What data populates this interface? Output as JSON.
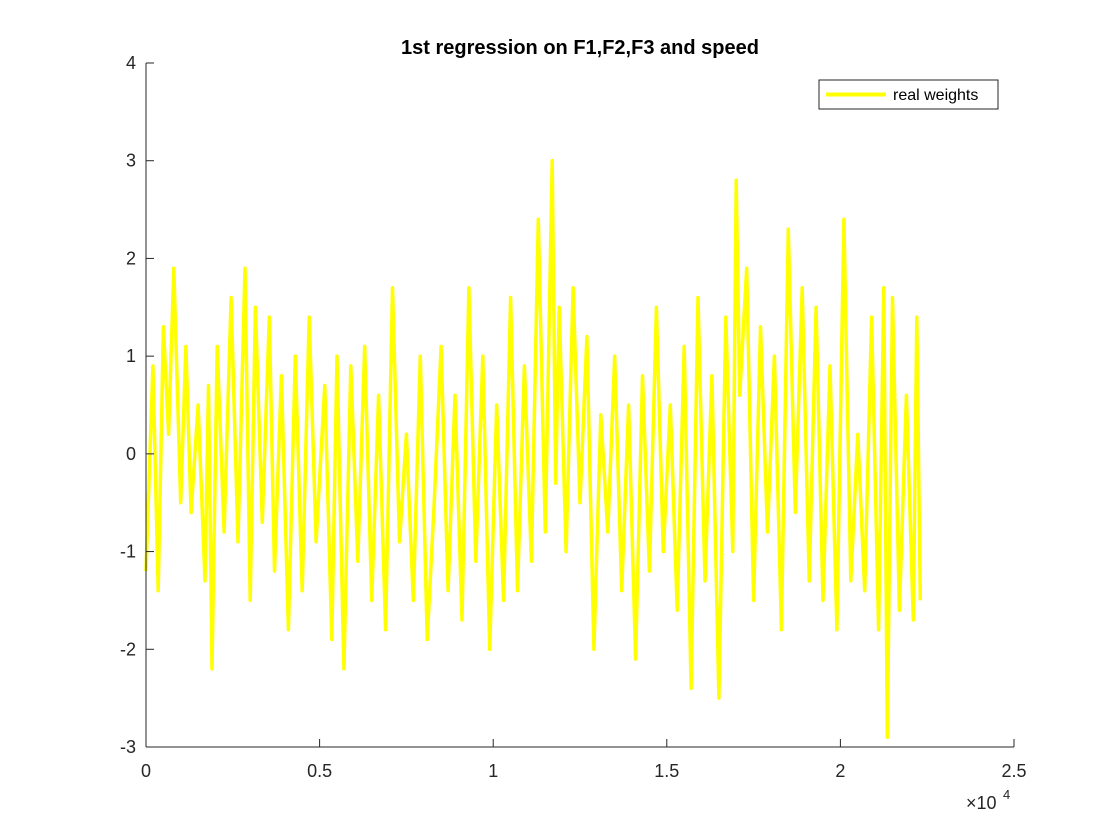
{
  "chart_data": {
    "type": "line",
    "title": "1st regression on F1,F2,F3 and speed",
    "xlabel": "",
    "ylabel": "",
    "xlim": [
      0,
      25000
    ],
    "ylim": [
      -3,
      4
    ],
    "x_ticks": [
      0,
      0.5,
      1,
      1.5,
      2,
      2.5
    ],
    "x_tick_labels": [
      "0",
      "0.5",
      "1",
      "1.5",
      "2",
      "2.5"
    ],
    "x_exponent_label": {
      "base": "×10",
      "exp": "4"
    },
    "y_ticks": [
      -3,
      -2,
      -1,
      0,
      1,
      2,
      3,
      4
    ],
    "y_tick_labels": [
      "-3",
      "-2",
      "-1",
      "0",
      "1",
      "2",
      "3",
      "4"
    ],
    "grid": false,
    "legend_position": "top-right",
    "series": [
      {
        "name": "real weights",
        "color": "#ffff00",
        "x": [
          0,
          200,
          350,
          500,
          650,
          800,
          1000,
          1150,
          1300,
          1500,
          1700,
          1800,
          1900,
          2050,
          2250,
          2450,
          2650,
          2850,
          3000,
          3150,
          3350,
          3550,
          3700,
          3900,
          4100,
          4300,
          4500,
          4700,
          4900,
          5150,
          5350,
          5500,
          5700,
          5900,
          6100,
          6300,
          6500,
          6700,
          6900,
          7100,
          7300,
          7500,
          7700,
          7900,
          8100,
          8300,
          8500,
          8700,
          8900,
          9100,
          9300,
          9500,
          9700,
          9900,
          10100,
          10300,
          10500,
          10700,
          10900,
          11100,
          11300,
          11500,
          11700,
          11800,
          11900,
          12100,
          12300,
          12500,
          12700,
          12900,
          13100,
          13300,
          13500,
          13700,
          13900,
          14100,
          14300,
          14500,
          14700,
          14900,
          15100,
          15300,
          15500,
          15700,
          15900,
          16100,
          16300,
          16500,
          16700,
          16900,
          17000,
          17100,
          17300,
          17500,
          17700,
          17900,
          18100,
          18300,
          18500,
          18700,
          18900,
          19100,
          19300,
          19500,
          19700,
          19900,
          20100,
          20300,
          20500,
          20700,
          20900,
          21100,
          21250,
          21350,
          21500,
          21700,
          21900,
          22100,
          22200,
          22300
        ],
        "values": [
          -1.2,
          0.9,
          -1.4,
          1.3,
          0.2,
          1.9,
          -0.5,
          1.1,
          -0.6,
          0.5,
          -1.3,
          0.7,
          -2.2,
          1.1,
          -0.8,
          1.6,
          -0.9,
          1.9,
          -1.5,
          1.5,
          -0.7,
          1.4,
          -1.2,
          0.8,
          -1.8,
          1.0,
          -1.4,
          1.4,
          -0.9,
          0.7,
          -1.9,
          1.0,
          -2.2,
          0.9,
          -1.1,
          1.1,
          -1.5,
          0.6,
          -1.8,
          1.7,
          -0.9,
          0.2,
          -1.5,
          1.0,
          -1.9,
          -0.5,
          1.1,
          -1.4,
          0.6,
          -1.7,
          1.7,
          -1.1,
          1.0,
          -2.0,
          0.5,
          -1.5,
          1.6,
          -1.4,
          0.9,
          -1.1,
          2.4,
          -0.8,
          3.0,
          -0.3,
          1.5,
          -1.0,
          1.7,
          -0.5,
          1.2,
          -2.0,
          0.4,
          -0.8,
          1.0,
          -1.4,
          0.5,
          -2.1,
          0.8,
          -1.2,
          1.5,
          -1.0,
          0.5,
          -1.6,
          1.1,
          -2.4,
          1.6,
          -1.3,
          0.8,
          -2.5,
          1.4,
          -1.0,
          2.8,
          0.6,
          1.9,
          -1.5,
          1.3,
          -0.8,
          1.0,
          -1.8,
          2.3,
          -0.6,
          1.7,
          -1.3,
          1.5,
          -1.5,
          0.9,
          -1.8,
          2.4,
          -1.3,
          0.2,
          -1.4,
          1.4,
          -1.8,
          1.7,
          -2.9,
          1.6,
          -1.6,
          0.6,
          -1.7,
          1.4,
          -1.5
        ]
      }
    ]
  }
}
